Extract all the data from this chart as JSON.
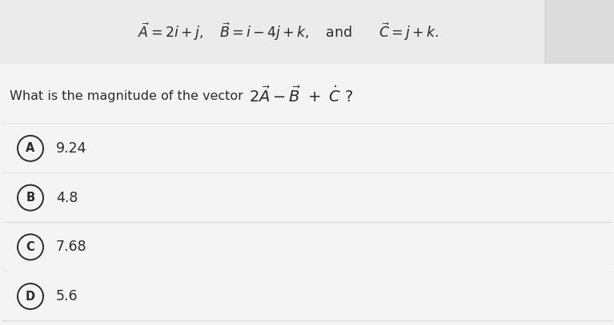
{
  "bg_color": "#f4f4f4",
  "header_bg": "#ebebeb",
  "white_box_color": "#e8e8e8",
  "option_bg": "#f4f4f4",
  "sep_color": "#d8d8d8",
  "text_color": "#2a2a2a",
  "circle_edge_color": "#2a2a2a",
  "fig_width": 7.67,
  "fig_height": 4.07,
  "dpi": 100,
  "header_formula": "$\\vec{A} = 2i + j,\\quad\\vec{B} = i-4j+k,\\quad \\mathrm{and} \\qquad \\vec{C} = j+k.$",
  "question_text": "What is the magnitude of the vector",
  "question_math": "$2\\vec{A} - \\vec{B} + \\dot{C}\\,?$",
  "options": [
    {
      "label": "A",
      "value": "9.24"
    },
    {
      "label": "B",
      "value": "4.8"
    },
    {
      "label": "C",
      "value": "7.68"
    },
    {
      "label": "D",
      "value": "5.6"
    }
  ]
}
